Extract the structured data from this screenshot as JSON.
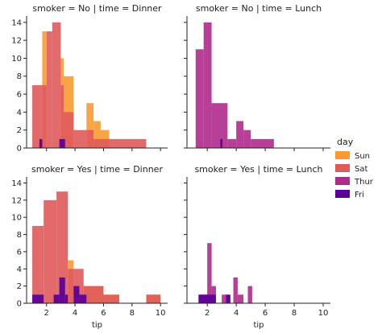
{
  "chart_data": {
    "type": "bar",
    "facet": "histogram grid",
    "xlabel": "tip",
    "ylabel": "",
    "xlim": [
      0.6,
      10.5
    ],
    "ylim": [
      0,
      14.7
    ],
    "xticks": [
      2,
      4,
      6,
      8,
      10
    ],
    "yticks": [
      0,
      2,
      4,
      6,
      8,
      10,
      12,
      14
    ],
    "legend": {
      "title": "day",
      "placement": "right",
      "entries": [
        {
          "name": "Sun",
          "color": "#f89a32"
        },
        {
          "name": "Sat",
          "color": "#df5a5a"
        },
        {
          "name": "Thur",
          "color": "#b02a8c"
        },
        {
          "name": "Fri",
          "color": "#5d009a"
        }
      ]
    },
    "panels": [
      {
        "title": "smoker = No | time = Dinner",
        "series": [
          {
            "name": "Sun",
            "bins": [
              {
                "x0": 1.7,
                "x1": 2.0,
                "y": 13
              },
              {
                "x0": 3.0,
                "x1": 3.2,
                "y": 10
              },
              {
                "x0": 3.2,
                "x1": 3.9,
                "y": 8
              },
              {
                "x0": 4.8,
                "x1": 5.3,
                "y": 5
              },
              {
                "x0": 5.3,
                "x1": 5.8,
                "y": 3
              },
              {
                "x0": 5.8,
                "x1": 6.4,
                "y": 2
              }
            ]
          },
          {
            "name": "Sat",
            "bins": [
              {
                "x0": 1.0,
                "x1": 1.7,
                "y": 7
              },
              {
                "x0": 1.7,
                "x1": 2.0,
                "y": 7
              },
              {
                "x0": 2.0,
                "x1": 2.4,
                "y": 13
              },
              {
                "x0": 2.4,
                "x1": 3.0,
                "y": 14
              },
              {
                "x0": 3.0,
                "x1": 3.2,
                "y": 7
              },
              {
                "x0": 3.2,
                "x1": 3.9,
                "y": 4
              },
              {
                "x0": 3.9,
                "x1": 4.8,
                "y": 2
              },
              {
                "x0": 4.8,
                "x1": 5.3,
                "y": 2
              },
              {
                "x0": 5.3,
                "x1": 5.8,
                "y": 1
              },
              {
                "x0": 5.8,
                "x1": 9.0,
                "y": 1
              }
            ]
          },
          {
            "name": "Fri",
            "bins": [
              {
                "x0": 1.5,
                "x1": 1.7,
                "y": 1
              },
              {
                "x0": 2.9,
                "x1": 3.3,
                "y": 1
              }
            ]
          }
        ]
      },
      {
        "title": "smoker = No | time = Lunch",
        "series": [
          {
            "name": "Thur",
            "bins": [
              {
                "x0": 1.2,
                "x1": 1.75,
                "y": 11
              },
              {
                "x0": 1.75,
                "x1": 2.3,
                "y": 14
              },
              {
                "x0": 2.3,
                "x1": 3.4,
                "y": 5
              },
              {
                "x0": 3.4,
                "x1": 4.0,
                "y": 1
              },
              {
                "x0": 4.0,
                "x1": 4.5,
                "y": 3
              },
              {
                "x0": 4.5,
                "x1": 5.0,
                "y": 2
              },
              {
                "x0": 5.0,
                "x1": 6.6,
                "y": 1
              }
            ]
          },
          {
            "name": "Fri",
            "bins": [
              {
                "x0": 2.9,
                "x1": 3.05,
                "y": 1
              }
            ]
          }
        ]
      },
      {
        "title": "smoker = Yes | time = Dinner",
        "series": [
          {
            "name": "Sun",
            "bins": [
              {
                "x0": 3.5,
                "x1": 3.9,
                "y": 5
              },
              {
                "x0": 4.6,
                "x1": 6.0,
                "y": 2
              },
              {
                "x0": 6.0,
                "x1": 7.1,
                "y": 1
              },
              {
                "x0": 9.0,
                "x1": 10.0,
                "y": 1
              }
            ]
          },
          {
            "name": "Sat",
            "bins": [
              {
                "x0": 1.0,
                "x1": 1.8,
                "y": 9
              },
              {
                "x0": 1.8,
                "x1": 2.7,
                "y": 12
              },
              {
                "x0": 2.7,
                "x1": 3.5,
                "y": 13
              },
              {
                "x0": 3.5,
                "x1": 3.9,
                "y": 4
              },
              {
                "x0": 3.9,
                "x1": 4.6,
                "y": 4
              },
              {
                "x0": 4.6,
                "x1": 6.0,
                "y": 2
              },
              {
                "x0": 6.0,
                "x1": 7.1,
                "y": 1
              },
              {
                "x0": 9.0,
                "x1": 10.0,
                "y": 1
              }
            ]
          },
          {
            "name": "Fri",
            "bins": [
              {
                "x0": 1.0,
                "x1": 1.8,
                "y": 1
              },
              {
                "x0": 2.5,
                "x1": 2.9,
                "y": 1
              },
              {
                "x0": 2.9,
                "x1": 3.3,
                "y": 3
              },
              {
                "x0": 3.3,
                "x1": 3.5,
                "y": 1
              },
              {
                "x0": 3.9,
                "x1": 4.3,
                "y": 2
              },
              {
                "x0": 4.3,
                "x1": 4.8,
                "y": 1
              }
            ]
          }
        ]
      },
      {
        "title": "smoker = Yes | time = Lunch",
        "series": [
          {
            "name": "Thur",
            "bins": [
              {
                "x0": 1.4,
                "x1": 2.0,
                "y": 1
              },
              {
                "x0": 2.0,
                "x1": 2.3,
                "y": 7
              },
              {
                "x0": 2.3,
                "x1": 2.6,
                "y": 2
              },
              {
                "x0": 3.0,
                "x1": 3.5,
                "y": 1
              },
              {
                "x0": 3.8,
                "x1": 4.1,
                "y": 3
              },
              {
                "x0": 4.1,
                "x1": 4.5,
                "y": 1
              },
              {
                "x0": 4.8,
                "x1": 5.1,
                "y": 2
              }
            ]
          },
          {
            "name": "Fri",
            "bins": [
              {
                "x0": 1.4,
                "x1": 2.6,
                "y": 1
              },
              {
                "x0": 3.3,
                "x1": 3.6,
                "y": 1
              }
            ]
          }
        ]
      }
    ]
  }
}
